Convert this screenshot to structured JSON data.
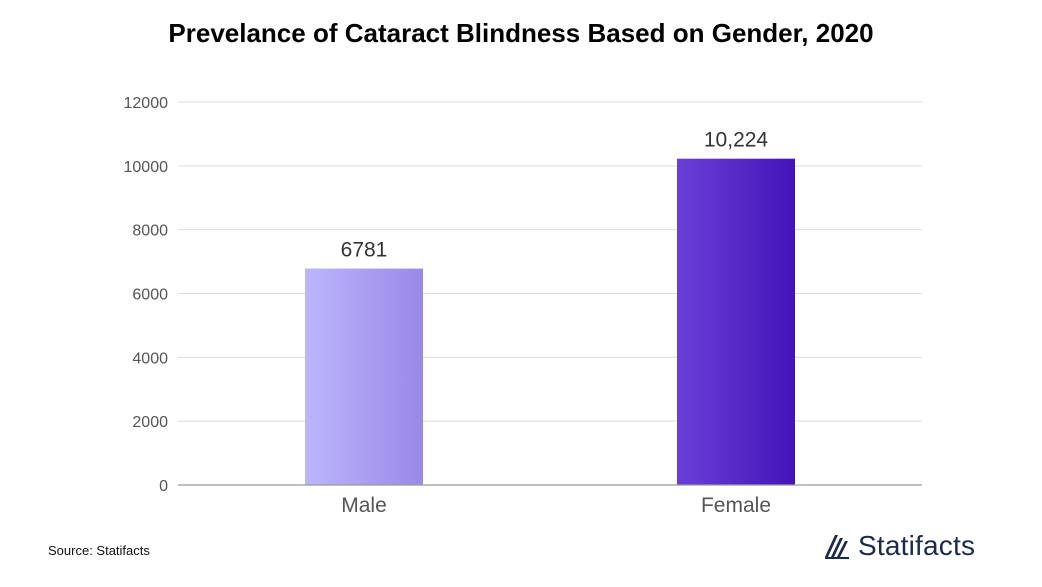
{
  "chart_data": {
    "type": "bar",
    "title": "Prevelance of Cataract Blindness Based on Gender, 2020",
    "categories": [
      "Male",
      "Female"
    ],
    "values": [
      6781,
      10224
    ],
    "data_labels": [
      "6781",
      "10,224"
    ],
    "ylim": [
      0,
      12000
    ],
    "yticks": [
      0,
      2000,
      4000,
      6000,
      8000,
      10000,
      12000
    ],
    "ytick_labels": [
      "0",
      "2000",
      "4000",
      "6000",
      "8000",
      "10000",
      "12000"
    ],
    "grid": true,
    "legend": "none",
    "bar_colors": [
      {
        "from": "#bcb6fb",
        "to": "#9a88e8"
      },
      {
        "from": "#6a3fd8",
        "to": "#4414b8"
      }
    ],
    "grid_color": "#dddddd",
    "axis_color": "#999999"
  },
  "footer": {
    "source": "Source: Statifacts",
    "brand": "Statifacts",
    "brand_icon": "statifacts-logo-icon",
    "brand_color": "#1c2b4a"
  }
}
